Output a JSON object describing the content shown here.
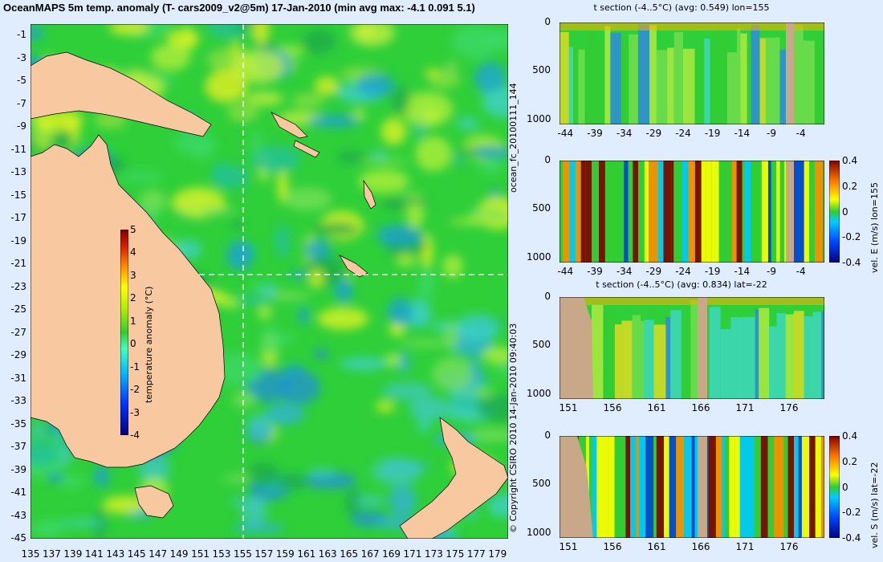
{
  "page": {
    "title": "OceanMAPS 5m temp. anomaly (T- cars2009_v2@5m) 17-Jan-2010 (min avg max: -4.1 0.091 5.1)",
    "side_label_run": "ocean_fc_20100111_144",
    "side_label_copyright": "© Copyright CSIRO 2010 14-Jan-2010 09:40:03"
  },
  "colors": {
    "background": "#e0ecff",
    "land": "#f8c8a0",
    "section_mask": "#c8a888",
    "ocean_base": "#2fcf3a",
    "colormap": [
      "#00007f",
      "#0033ff",
      "#00b7ff",
      "#3fffbf",
      "#33cc33",
      "#ffff00",
      "#ff8c00",
      "#d41e00",
      "#7f0000"
    ]
  },
  "chart_data": [
    {
      "id": "map",
      "type": "heatmap",
      "title": "OceanMAPS 5m temp. anomaly (T- cars2009_v2@5m) 17-Jan-2010 (min avg max: -4.1 0.091 5.1)",
      "x_ticks": [
        "135",
        "137",
        "139",
        "141",
        "143",
        "145",
        "147",
        "149",
        "151",
        "153",
        "155",
        "157",
        "159",
        "161",
        "163",
        "165",
        "167",
        "169",
        "171",
        "173",
        "175",
        "177",
        "179"
      ],
      "y_ticks": [
        "-1",
        "-3",
        "-5",
        "-7",
        "-9",
        "-11",
        "-13",
        "-15",
        "-17",
        "-19",
        "-21",
        "-23",
        "-25",
        "-27",
        "-29",
        "-31",
        "-33",
        "-35",
        "-37",
        "-39",
        "-41",
        "-43",
        "-45"
      ],
      "xlim": [
        135,
        180
      ],
      "ylim": [
        -45,
        0
      ],
      "section_lon": 155,
      "section_lat": -22,
      "colorbar": {
        "label": "temperature anomaly (°C)",
        "ticks": [
          "5",
          "4",
          "3",
          "2",
          "1",
          "0",
          "-1",
          "-2",
          "-3",
          "-4"
        ],
        "range": [
          -4,
          5
        ]
      },
      "stats": {
        "min": -4.1,
        "avg": 0.091,
        "max": 5.1
      }
    },
    {
      "id": "section1",
      "type": "heatmap",
      "title": "t section (-4..5°C) (avg: 0.549) lon=155",
      "x_ticks": [
        "-44",
        "-39",
        "-34",
        "-29",
        "-24",
        "-19",
        "-14",
        "-9",
        "-4"
      ],
      "y_ticks": [
        "0",
        "500",
        "1000"
      ],
      "xlim": [
        -45,
        0
      ],
      "ylim": [
        1050,
        0
      ]
    },
    {
      "id": "section2",
      "type": "heatmap",
      "title": "",
      "x_ticks": [
        "-44",
        "-39",
        "-34",
        "-29",
        "-24",
        "-19",
        "-14",
        "-9",
        "-4"
      ],
      "y_ticks": [
        "0",
        "500",
        "1000"
      ],
      "xlim": [
        -45,
        0
      ],
      "ylim": [
        1050,
        0
      ],
      "colorbar": {
        "label": "vel. E (m/s) lon=155",
        "ticks": [
          "0.4",
          "0.2",
          "0",
          "-0.2",
          "-0.4"
        ],
        "range": [
          -0.4,
          0.4
        ]
      }
    },
    {
      "id": "section3",
      "type": "heatmap",
      "title": "t section (-4..5°C) (avg: 0.834) lat=-22",
      "x_ticks": [
        "151",
        "156",
        "161",
        "166",
        "171",
        "176"
      ],
      "y_ticks": [
        "0",
        "500",
        "1000"
      ],
      "xlim": [
        150,
        180
      ],
      "ylim": [
        1050,
        0
      ]
    },
    {
      "id": "section4",
      "type": "heatmap",
      "title": "",
      "x_ticks": [
        "151",
        "156",
        "161",
        "166",
        "171",
        "176"
      ],
      "y_ticks": [
        "0",
        "500",
        "1000"
      ],
      "xlim": [
        150,
        180
      ],
      "ylim": [
        1050,
        0
      ],
      "colorbar": {
        "label": "vel. S (m/s) lat=-22",
        "ticks": [
          "0.4",
          "0.2",
          "0",
          "-0.2",
          "-0.4"
        ],
        "range": [
          -0.4,
          0.4
        ]
      }
    }
  ]
}
